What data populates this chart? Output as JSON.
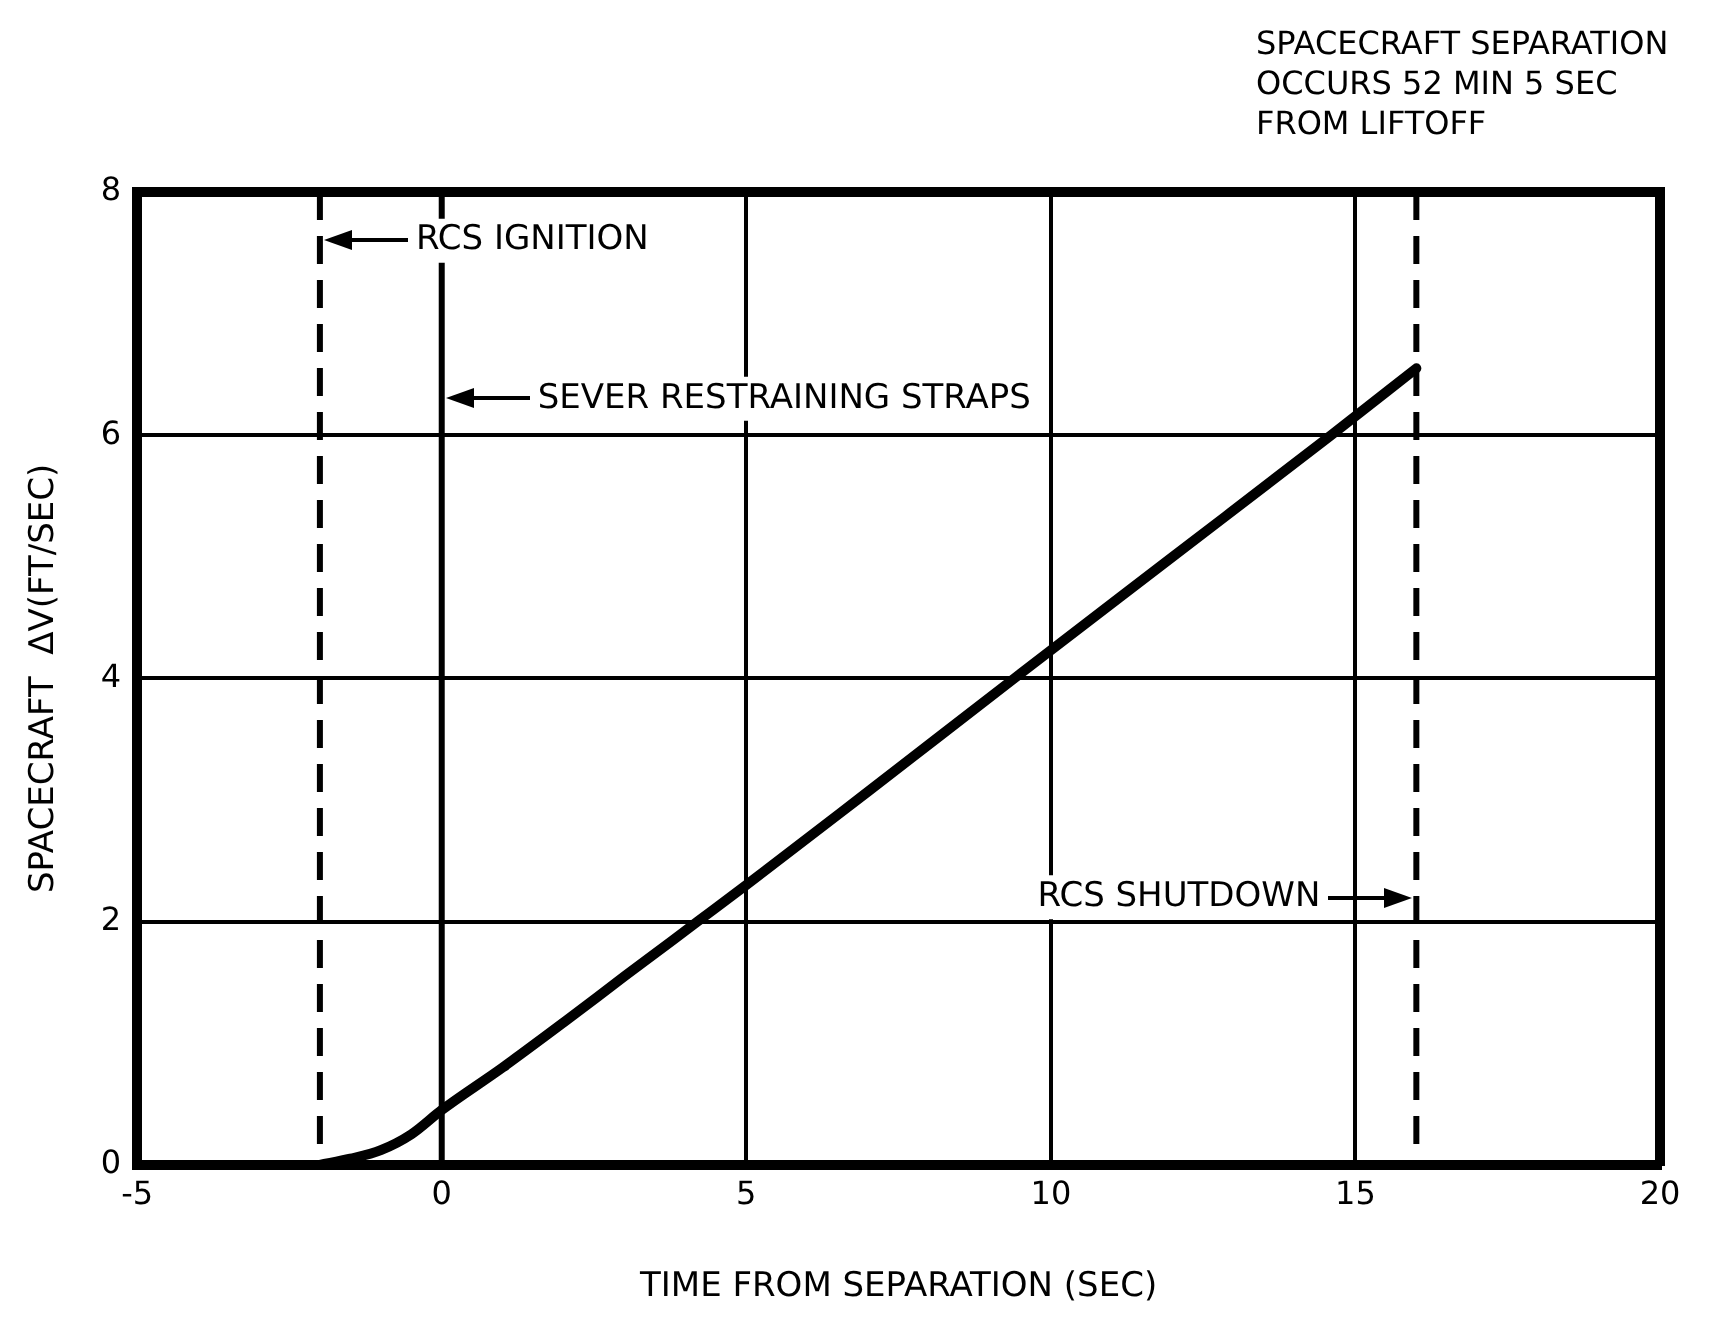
{
  "chart_data": {
    "type": "line",
    "title": "SPACECRAFT SEPARATION OCCURS 52 MIN 5 SEC FROM LIFTOFF",
    "xlabel": "TIME FROM SEPARATION (SEC)",
    "ylabel": "SPACECRAFT  ΔV(FT/SEC)",
    "x": [
      -2,
      -1.5,
      -1,
      -0.5,
      0,
      1,
      2,
      3,
      4.2,
      5,
      7,
      9.4,
      12,
      14.6,
      16
    ],
    "series": [
      {
        "color": "#000000",
        "values": [
          0,
          0.05,
          0.12,
          0.25,
          0.45,
          0.8,
          1.17,
          1.55,
          2,
          2.3,
          3.07,
          4,
          5,
          6,
          6.55
        ]
      }
    ],
    "xlim": [
      -5,
      20
    ],
    "xticks": [
      -5,
      0,
      5,
      10,
      15,
      20
    ],
    "ylim": [
      0,
      8
    ],
    "yticks": [
      0,
      2,
      4,
      6,
      8
    ],
    "grid": true,
    "legend": false,
    "marker": "none",
    "line_style": "solid",
    "ref_lines": [
      {
        "axis": "x",
        "value": -2,
        "color": "#000000",
        "line_style": "dashed"
      },
      {
        "axis": "x",
        "value": 0,
        "color": "#000000",
        "line_style": "solid"
      },
      {
        "axis": "x",
        "value": 16,
        "color": "#000000",
        "line_style": "dashed"
      }
    ],
    "annotations": [
      {
        "text": "RCS IGNITION",
        "x": -2,
        "y": 7.6
      },
      {
        "text": "SEVER RESTRAINING STRAPS",
        "x": 0,
        "y": 6.3
      },
      {
        "text": "RCS SHUTDOWN",
        "x": 16,
        "y": 2.2
      }
    ]
  }
}
